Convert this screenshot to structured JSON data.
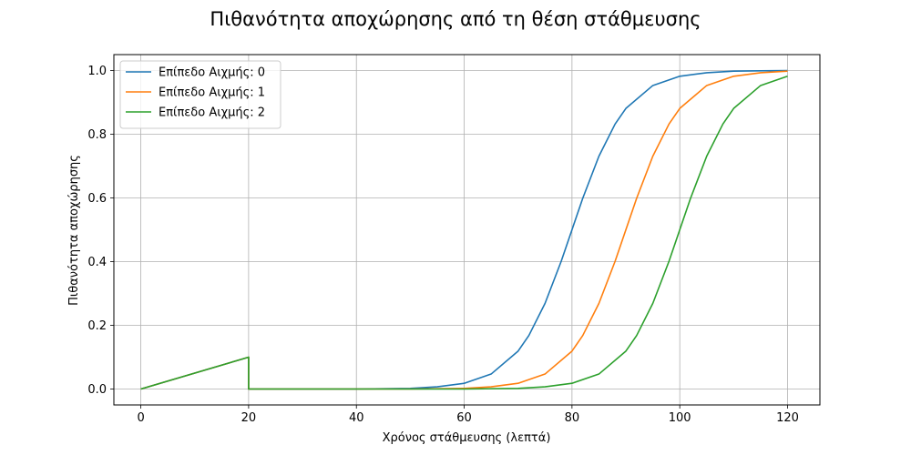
{
  "chart_data": {
    "type": "line",
    "title": "Πιθανότητα αποχώρησης από τη θέση στάθμευσης",
    "xlabel": "Χρόνος στάθμευσης (λεπτά)",
    "ylabel": "Πιθανότητα αποχώρησης",
    "xlim": [
      -5,
      126
    ],
    "ylim": [
      -0.05,
      1.05
    ],
    "xticks": [
      0,
      20,
      40,
      60,
      80,
      100,
      120
    ],
    "yticks": [
      0.0,
      0.2,
      0.4,
      0.6,
      0.8,
      1.0
    ],
    "xtick_labels": [
      "0",
      "20",
      "40",
      "60",
      "80",
      "100",
      "120"
    ],
    "ytick_labels": [
      "0.0",
      "0.2",
      "0.4",
      "0.6",
      "0.8",
      "1.0"
    ],
    "grid": true,
    "legend_position": "top-left",
    "series": [
      {
        "name": "Επίπεδο Αιχμής: 0",
        "color": "#1f77b4",
        "x": [
          0,
          20,
          20,
          30,
          40,
          50,
          55,
          60,
          65,
          70,
          72,
          75,
          78,
          80,
          82,
          85,
          88,
          90,
          95,
          100,
          105,
          110,
          115,
          120
        ],
        "y": [
          0.0,
          0.1,
          0.0,
          0.0,
          0.0,
          0.002,
          0.007,
          0.018,
          0.047,
          0.119,
          0.168,
          0.269,
          0.401,
          0.5,
          0.599,
          0.731,
          0.832,
          0.881,
          0.953,
          0.982,
          0.993,
          0.998,
          0.999,
          1.0
        ]
      },
      {
        "name": "Επίπεδο Αιχμής: 1",
        "color": "#ff7f0e",
        "x": [
          0,
          20,
          20,
          30,
          40,
          50,
          60,
          65,
          70,
          75,
          80,
          82,
          85,
          88,
          90,
          92,
          95,
          98,
          100,
          105,
          110,
          115,
          120
        ],
        "y": [
          0.0,
          0.1,
          0.0,
          0.0,
          0.0,
          0.0,
          0.002,
          0.007,
          0.018,
          0.047,
          0.119,
          0.168,
          0.269,
          0.401,
          0.5,
          0.599,
          0.731,
          0.832,
          0.881,
          0.953,
          0.982,
          0.993,
          0.998
        ]
      },
      {
        "name": "Επίπεδο Αιχμής: 2",
        "color": "#2ca02c",
        "x": [
          0,
          20,
          20,
          30,
          40,
          50,
          60,
          70,
          75,
          80,
          85,
          90,
          92,
          95,
          98,
          100,
          102,
          105,
          108,
          110,
          115,
          120
        ],
        "y": [
          0.0,
          0.1,
          0.0,
          0.0,
          0.0,
          0.0,
          0.0,
          0.002,
          0.007,
          0.018,
          0.047,
          0.119,
          0.168,
          0.269,
          0.401,
          0.5,
          0.599,
          0.731,
          0.832,
          0.881,
          0.953,
          0.982
        ]
      }
    ]
  }
}
